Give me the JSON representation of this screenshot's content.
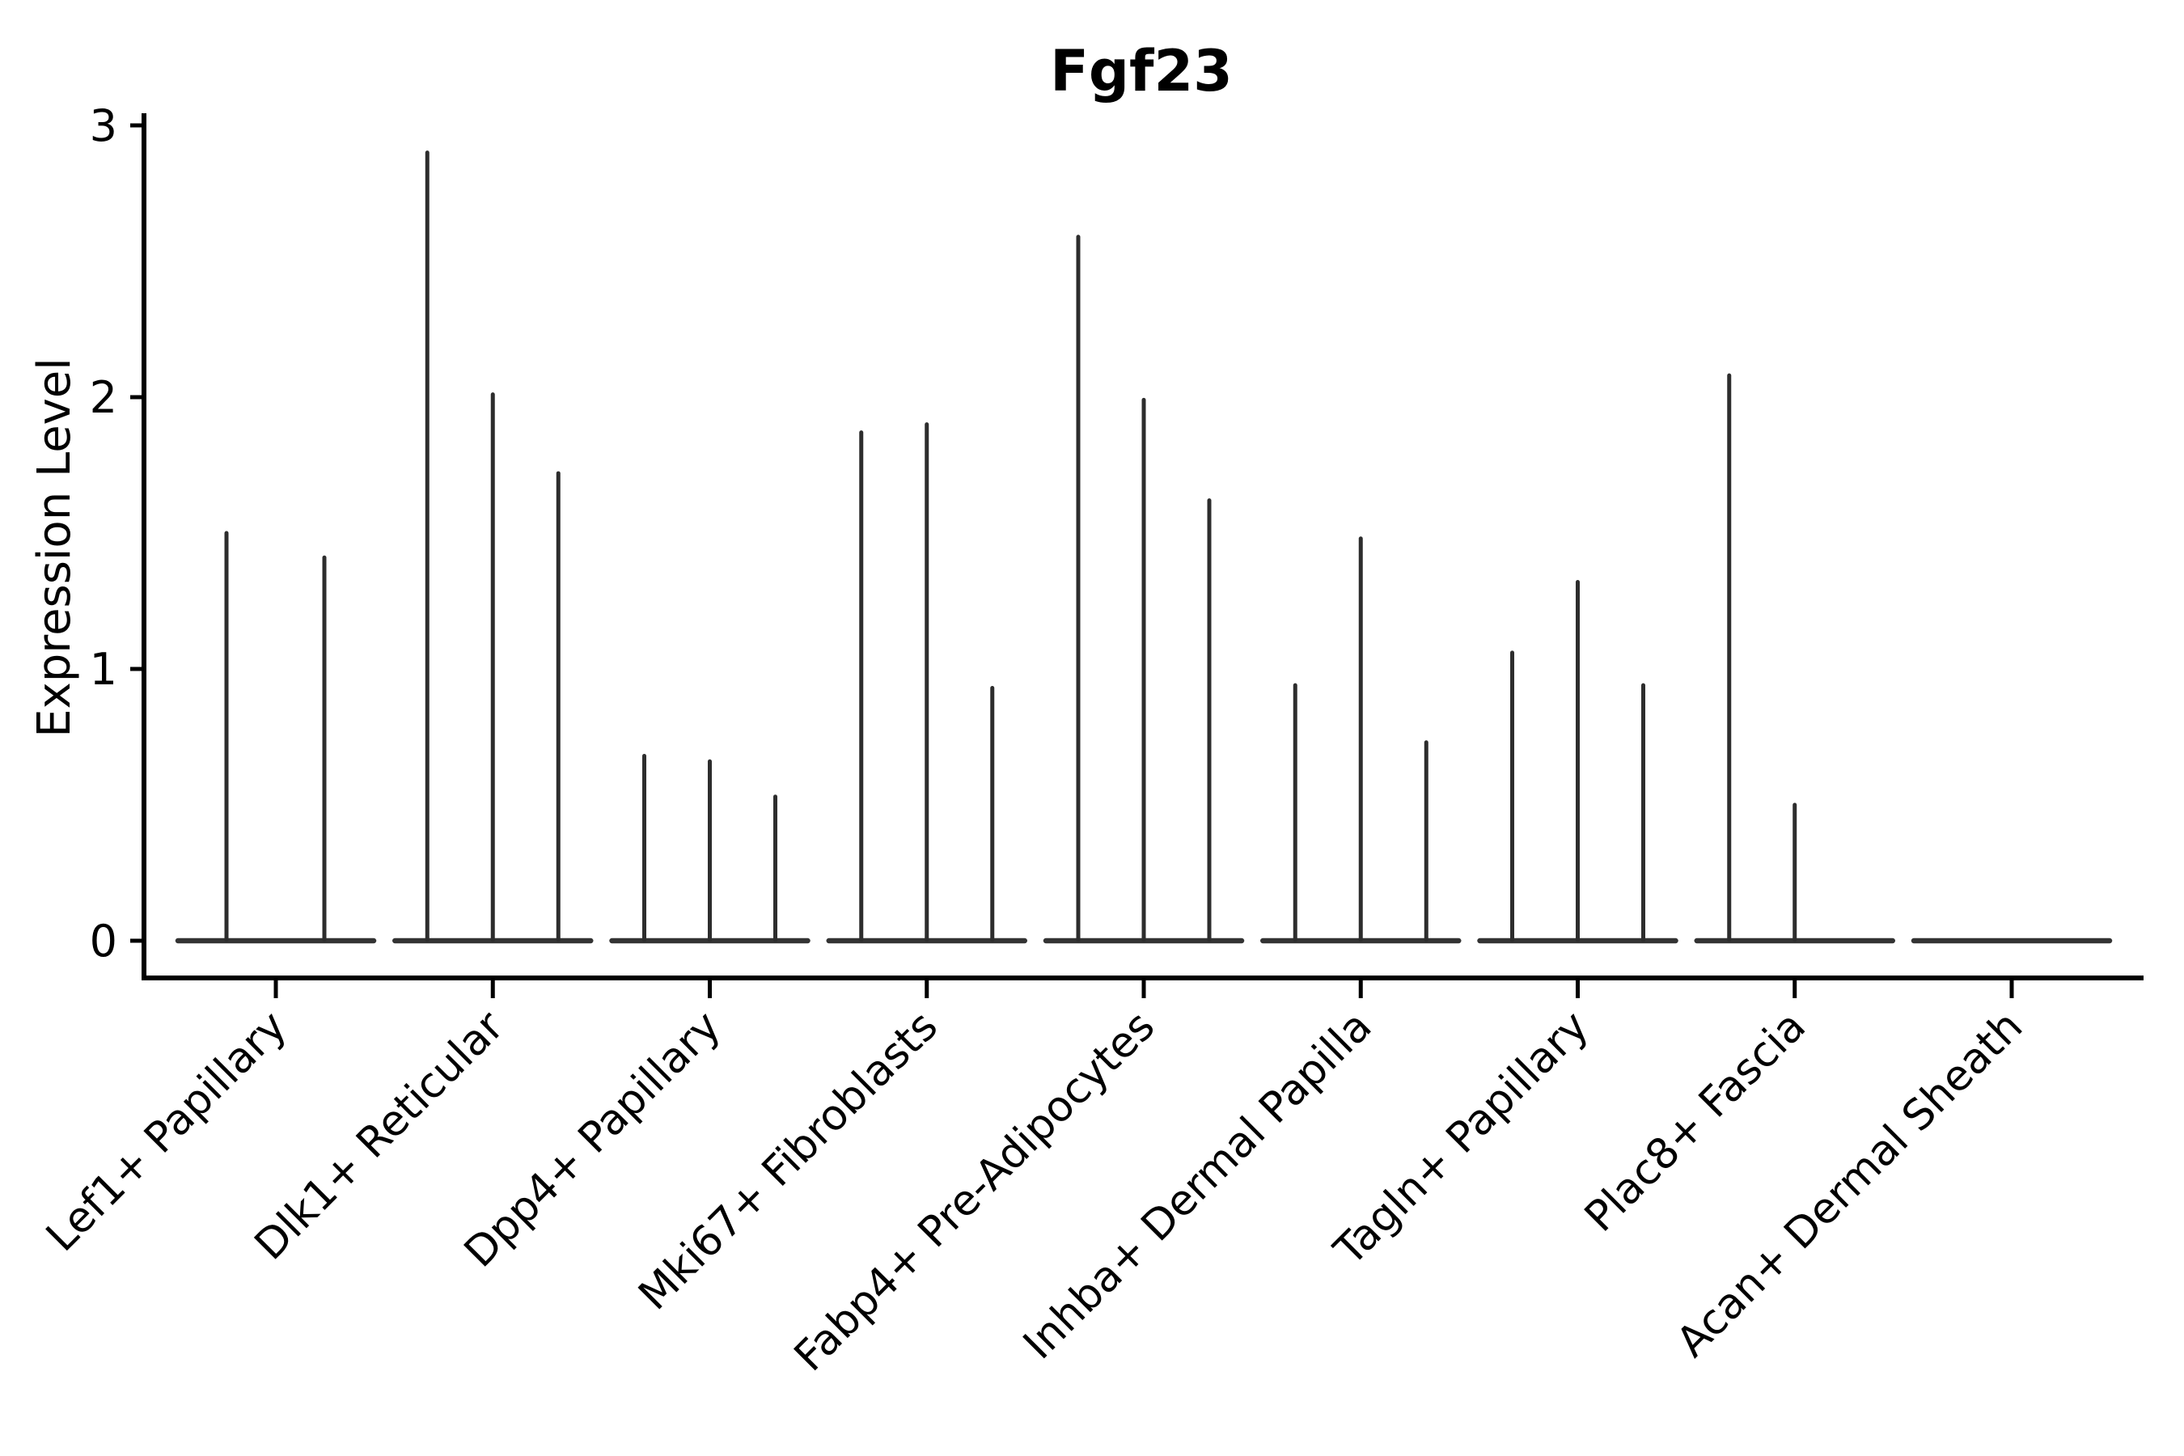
{
  "figure": {
    "background": "#ffffff",
    "colors": {
      "axis": "#000000",
      "violin_spike": "#2d2d2d",
      "violin_baseline": "#333333",
      "text": "#000000"
    }
  },
  "chart_data": {
    "type": "violin",
    "title": "Fgf23",
    "xlabel": "",
    "ylabel": "Expression Level",
    "ylim": [
      0,
      3
    ],
    "yticks": [
      0,
      1,
      2,
      3
    ],
    "grid": false,
    "legend": "none",
    "x_label_rotation_deg": 45,
    "categories": [
      "Lef1+ Papillary",
      "Dlk1+ Reticular",
      "Dpp4+ Papillary",
      "Mki67+ Fibroblasts",
      "Fabp4+ Pre-Adipocytes",
      "Inhba+ Dermal Papilla",
      "Tagln+ Papillary",
      "Plac8+ Fascia",
      "Acan+ Dermal Sheath"
    ],
    "groups": [
      {
        "label": "Lef1+ Papillary",
        "spikes": [
          {
            "offset": -61,
            "value": 1.5
          },
          {
            "offset": 60,
            "value": 1.41
          }
        ]
      },
      {
        "label": "Dlk1+ Reticular",
        "spikes": [
          {
            "offset": -81,
            "value": 2.9
          },
          {
            "offset": 0,
            "value": 2.01
          },
          {
            "offset": 81,
            "value": 1.72
          }
        ]
      },
      {
        "label": "Dpp4+ Papillary",
        "spikes": [
          {
            "offset": -81,
            "value": 0.68
          },
          {
            "offset": 0,
            "value": 0.66
          },
          {
            "offset": 81,
            "value": 0.53
          }
        ]
      },
      {
        "label": "Mki67+ Fibroblasts",
        "spikes": [
          {
            "offset": -81,
            "value": 1.87
          },
          {
            "offset": 0,
            "value": 1.9
          },
          {
            "offset": 81,
            "value": 0.93
          }
        ]
      },
      {
        "label": "Fabp4+ Pre-Adipocytes",
        "spikes": [
          {
            "offset": -81,
            "value": 2.59
          },
          {
            "offset": 0,
            "value": 1.99
          },
          {
            "offset": 81,
            "value": 1.62
          }
        ]
      },
      {
        "label": "Inhba+ Dermal Papilla",
        "spikes": [
          {
            "offset": -81,
            "value": 0.94
          },
          {
            "offset": 0,
            "value": 1.48
          },
          {
            "offset": 81,
            "value": 0.73
          }
        ]
      },
      {
        "label": "Tagln+ Papillary",
        "spikes": [
          {
            "offset": -81,
            "value": 1.06
          },
          {
            "offset": 0,
            "value": 1.32
          },
          {
            "offset": 81,
            "value": 0.94
          }
        ]
      },
      {
        "label": "Plac8+ Fascia",
        "spikes": [
          {
            "offset": -81,
            "value": 2.08
          },
          {
            "offset": 0,
            "value": 0.5
          }
        ]
      },
      {
        "label": "Acan+ Dermal Sheath",
        "spikes": []
      }
    ]
  }
}
